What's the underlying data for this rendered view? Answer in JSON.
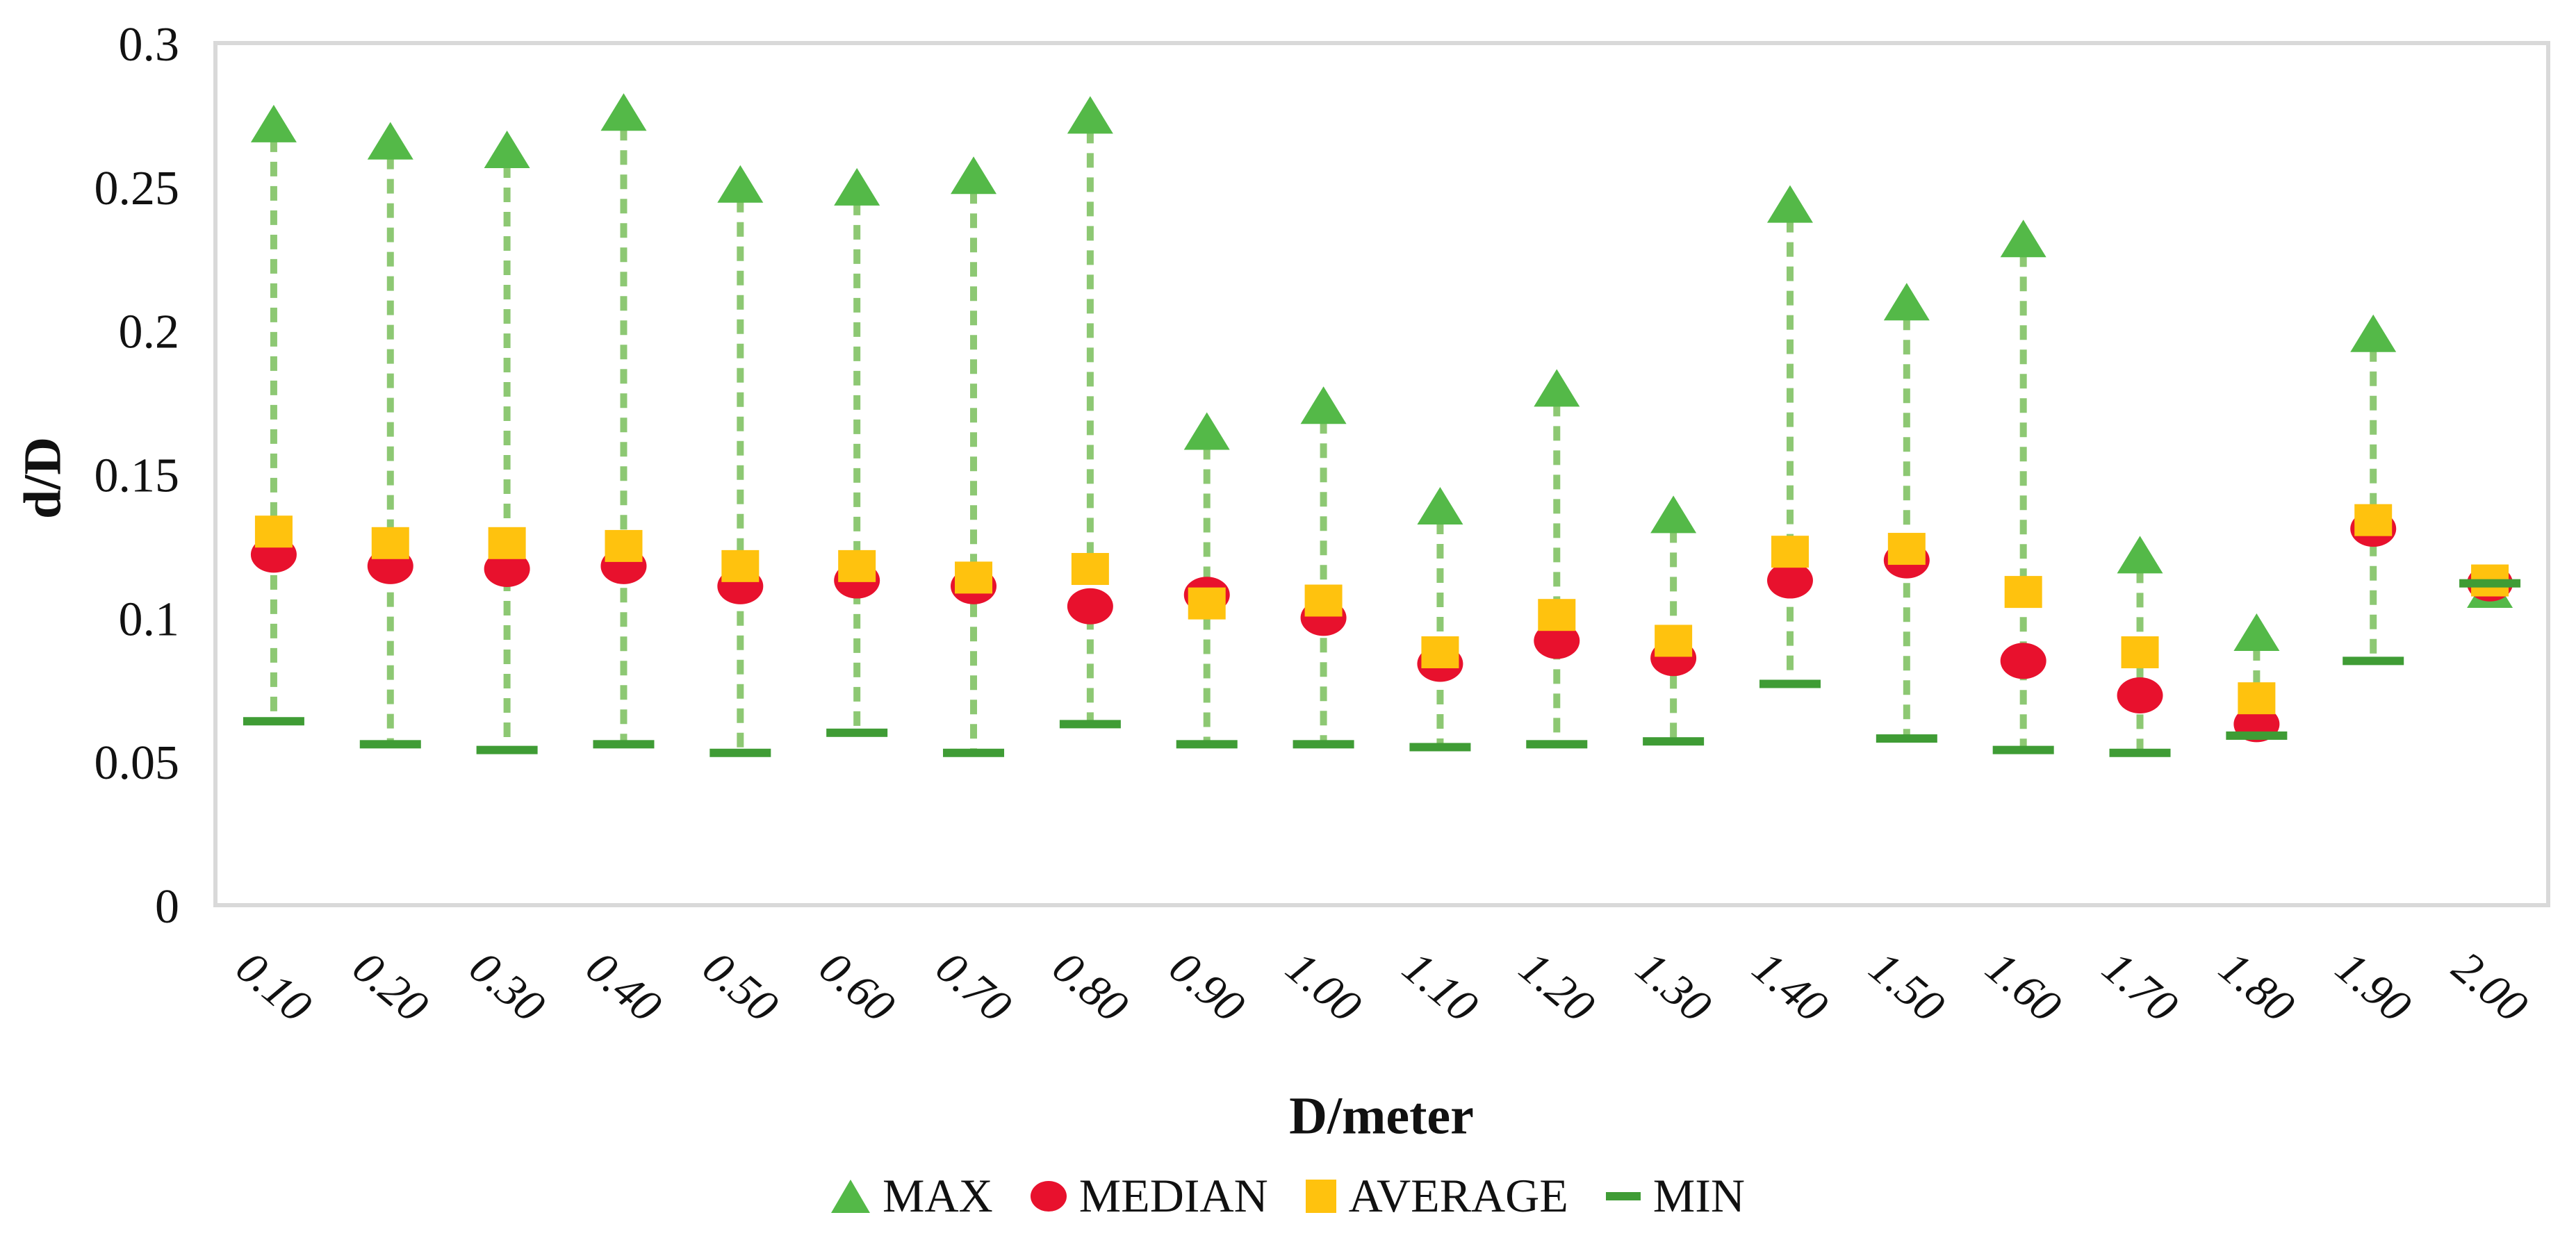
{
  "chart_data": {
    "type": "scatter",
    "title": "",
    "xlabel": "D/meter",
    "ylabel": "d/D",
    "x_categories": [
      "0.10",
      "0.20",
      "0.30",
      "0.40",
      "0.50",
      "0.60",
      "0.70",
      "0.80",
      "0.90",
      "1.00",
      "1.10",
      "1.20",
      "1.30",
      "1.40",
      "1.50",
      "1.60",
      "1.70",
      "1.80",
      "1.90",
      "2.00"
    ],
    "y_ticks": [
      "0",
      "0.05",
      "0.1",
      "0.15",
      "0.2",
      "0.25",
      "0.3"
    ],
    "ylim": [
      0,
      0.3
    ],
    "grid": false,
    "legend_position": "bottom",
    "plot_border_color": "#D9D9D9",
    "hilo": {
      "style": "dashed",
      "color": "#8DC873"
    },
    "series": [
      {
        "name": "MAX",
        "marker": "triangle",
        "color": "#54B948",
        "values": [
          0.272,
          0.266,
          0.263,
          0.276,
          0.251,
          0.25,
          0.254,
          0.275,
          0.165,
          0.174,
          0.139,
          0.18,
          0.136,
          0.244,
          0.21,
          0.232,
          0.122,
          0.095,
          0.199,
          0.11
        ]
      },
      {
        "name": "MEDIAN",
        "marker": "circle",
        "color": "#E8112D",
        "values": [
          0.122,
          0.118,
          0.117,
          0.118,
          0.111,
          0.113,
          0.111,
          0.104,
          0.108,
          0.1,
          0.084,
          0.092,
          0.086,
          0.113,
          0.12,
          0.085,
          0.073,
          0.063,
          0.131,
          0.112
        ]
      },
      {
        "name": "AVERAGE",
        "marker": "square",
        "color": "#FFC20E",
        "values": [
          0.13,
          0.126,
          0.126,
          0.125,
          0.118,
          0.118,
          0.114,
          0.117,
          0.105,
          0.106,
          0.088,
          0.101,
          0.092,
          0.123,
          0.124,
          0.109,
          0.088,
          0.072,
          0.134,
          0.113
        ]
      },
      {
        "name": "MIN",
        "marker": "dash",
        "color": "#3F9C35",
        "values": [
          0.064,
          0.056,
          0.054,
          0.056,
          0.053,
          0.06,
          0.053,
          0.063,
          0.056,
          0.056,
          0.055,
          0.056,
          0.057,
          0.077,
          0.058,
          0.054,
          0.053,
          0.059,
          0.085,
          0.112
        ]
      }
    ]
  }
}
